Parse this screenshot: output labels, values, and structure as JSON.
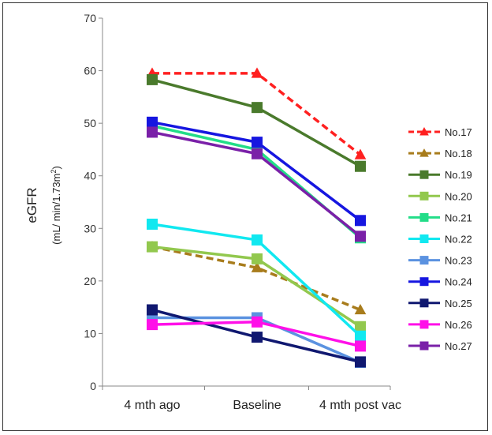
{
  "chart_data": {
    "type": "line",
    "title": "",
    "categories": [
      "4 mth ago",
      "Baseline",
      "4 mth post vac"
    ],
    "ylabel": "eGFR",
    "ylabel_units_prefix": "(mL/ min/1.73m",
    "ylabel_units_sup": "2",
    "ylabel_units_suffix": ")",
    "ylim": [
      0,
      70
    ],
    "yticks": [
      0,
      10,
      20,
      30,
      40,
      50,
      60,
      70
    ],
    "legend_position": "right",
    "series": [
      {
        "name": "No.17",
        "values": [
          59.5,
          59.5,
          44.0
        ],
        "color": "#ff2020",
        "marker": "triangle",
        "dash": true
      },
      {
        "name": "No.18",
        "values": [
          26.5,
          22.5,
          14.5
        ],
        "color": "#a87c1c",
        "marker": "triangle",
        "dash": true
      },
      {
        "name": "No.19",
        "values": [
          58.3,
          53.0,
          41.8
        ],
        "color": "#4a7a2c",
        "marker": "square",
        "dash": false
      },
      {
        "name": "No.20",
        "values": [
          26.5,
          24.2,
          11.3
        ],
        "color": "#92c84e",
        "marker": "square",
        "dash": false
      },
      {
        "name": "No.21",
        "values": [
          49.5,
          45.0,
          28.2
        ],
        "color": "#22dd88",
        "marker": "square",
        "dash": false
      },
      {
        "name": "No.22",
        "values": [
          30.8,
          27.8,
          9.5
        ],
        "color": "#11e8f0",
        "marker": "square",
        "dash": false
      },
      {
        "name": "No.23",
        "values": [
          13.0,
          13.0,
          4.5
        ],
        "color": "#5b92e0",
        "marker": "square",
        "dash": false
      },
      {
        "name": "No.24",
        "values": [
          50.2,
          46.4,
          31.5
        ],
        "color": "#1616e0",
        "marker": "square",
        "dash": false
      },
      {
        "name": "No.25",
        "values": [
          14.5,
          9.3,
          4.6
        ],
        "color": "#101870",
        "marker": "square",
        "dash": false
      },
      {
        "name": "No.26",
        "values": [
          11.7,
          12.2,
          7.6
        ],
        "color": "#ff10e8",
        "marker": "square",
        "dash": false
      },
      {
        "name": "No.27",
        "values": [
          48.3,
          44.2,
          28.5
        ],
        "color": "#7a20a8",
        "marker": "square",
        "dash": false
      }
    ]
  }
}
